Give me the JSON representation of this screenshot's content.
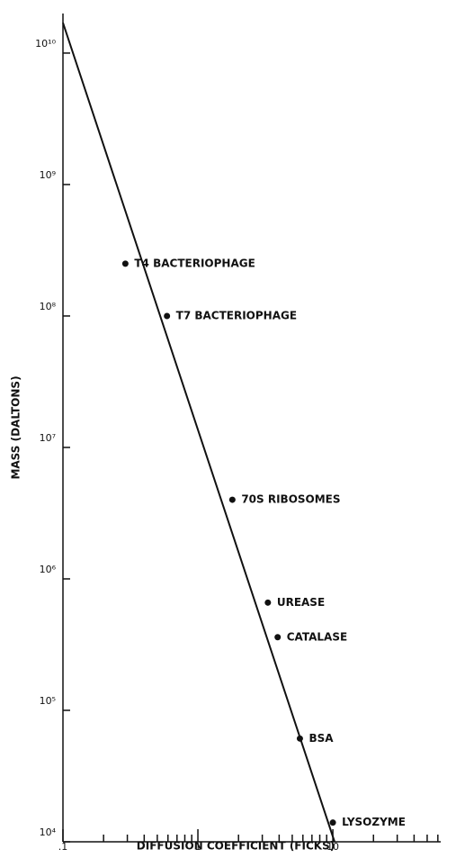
{
  "chart_data": {
    "type": "scatter",
    "x_label": "DIFFUSION COEFFICIENT (FICKS)",
    "y_label": "MASS (DALTONS)",
    "log_x": true,
    "log_y": true,
    "xlim": [
      0.1,
      63
    ],
    "ylim": [
      10000,
      20000000000
    ],
    "xticks": [
      {
        "value": 0.1,
        "label": ".1"
      },
      1,
      10
    ],
    "xminorticks": [
      0.2,
      0.3,
      0.4,
      0.5,
      0.6,
      0.7,
      0.8,
      0.9,
      2,
      3,
      4,
      5,
      6,
      7,
      8,
      9,
      20,
      30,
      40,
      50,
      60
    ],
    "yticks": [
      {
        "value": 10000,
        "label": "10⁴"
      },
      {
        "value": 100000,
        "label": "10⁵"
      },
      {
        "value": 1000000,
        "label": "10⁶"
      },
      {
        "value": 10000000,
        "label": "10⁷"
      },
      {
        "value": 100000000,
        "label": "10⁸"
      },
      {
        "value": 1000000000,
        "label": "10⁹"
      },
      {
        "value": 10000000000,
        "label": "10¹⁰"
      }
    ],
    "color": "#111111",
    "points": {
      "labels": [
        "T4 BACTERIOPHAGE",
        "T7 BACTERIOPHAGE",
        "70S RIBOSOMES",
        "UREASE",
        "CATALASE",
        "BSA",
        "LYSOZYME"
      ],
      "x": [
        0.29,
        0.59,
        1.8,
        3.3,
        3.9,
        5.7,
        10
      ],
      "values": [
        250000000,
        100000000,
        4000000,
        660000,
        360000,
        61000,
        14000
      ]
    },
    "fit_line": {
      "x": [
        0.1,
        10.3
      ],
      "values": [
        17000000000,
        10000
      ]
    }
  }
}
